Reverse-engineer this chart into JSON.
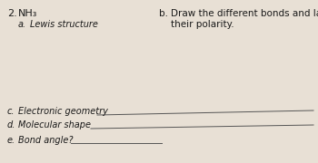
{
  "background_color": "#e8e0d5",
  "number_label": "2.",
  "molecule": "NH₃",
  "section_a_label": "a.",
  "section_a_text": "Lewis structure",
  "section_b_label": "b.",
  "section_b_line1": "Draw the different bonds and label",
  "section_b_line2": "their polarity.",
  "section_c_label": "c.",
  "section_c_text": "Electronic geometry",
  "section_d_label": "d.",
  "section_d_text": "Molecular shape",
  "section_e_label": "e.",
  "section_e_text": "Bond angle?",
  "font_color": "#1a1a1a",
  "line_color": "#555555",
  "font_size_main": 7.5,
  "font_size_number": 8.0,
  "font_size_italic": 7.0
}
